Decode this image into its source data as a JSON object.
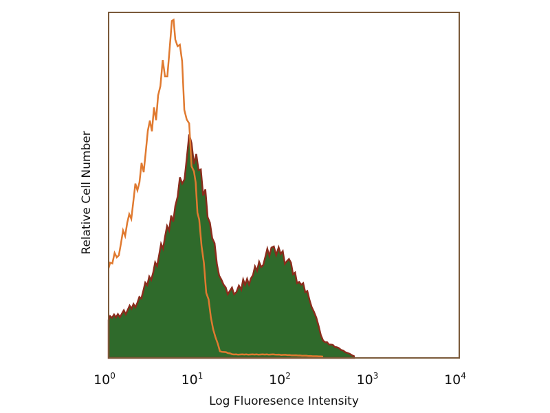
{
  "chart_data": {
    "type": "area",
    "title": "",
    "xlabel": "Log Fluoresence Intensity",
    "ylabel": "Relative Cell Number",
    "xscale": "log",
    "xlim": [
      1,
      10000
    ],
    "ylim": [
      0,
      100
    ],
    "grid": false,
    "xticks": [
      {
        "base": "10",
        "exp": "0",
        "value": 1
      },
      {
        "base": "10",
        "exp": "1",
        "value": 10
      },
      {
        "base": "10",
        "exp": "2",
        "value": 100
      },
      {
        "base": "10",
        "exp": "3",
        "value": 1000
      },
      {
        "base": "10",
        "exp": "4",
        "value": 10000
      }
    ],
    "series": [
      {
        "style": "filled",
        "color": "#2f6a2b",
        "edge_color": "#8a2c1c",
        "x": [
          1.0,
          1.04,
          1.49,
          2.13,
          3.06,
          4.4,
          5.77,
          6.9,
          8.3,
          10,
          11.97,
          14.3,
          17.2,
          20.5,
          27,
          32.6,
          42,
          55,
          72,
          87,
          114,
          149,
          195,
          234,
          280,
          400,
          630
        ],
        "y": [
          11,
          11.4,
          13,
          16,
          24,
          34,
          44,
          52,
          61,
          59,
          50,
          38,
          28,
          20,
          19,
          21,
          23,
          28,
          31,
          32,
          27,
          22,
          18,
          11,
          5,
          3,
          0.5
        ]
      },
      {
        "style": "outline",
        "color": "#e07a30",
        "x": [
          1.0,
          1.04,
          1.24,
          1.63,
          2.13,
          2.8,
          3.67,
          4.4,
          5.27,
          5.77,
          6.5,
          7.3,
          8.3,
          9.4,
          10.8,
          13,
          15.6,
          18.6,
          27,
          79,
          280
        ],
        "y": [
          26,
          26,
          30,
          38,
          50,
          62,
          76,
          84,
          92,
          98,
          88,
          74,
          64,
          54,
          40,
          20,
          8,
          2,
          1,
          1,
          0.4
        ]
      }
    ],
    "frame_color": "#7a5a3a"
  }
}
